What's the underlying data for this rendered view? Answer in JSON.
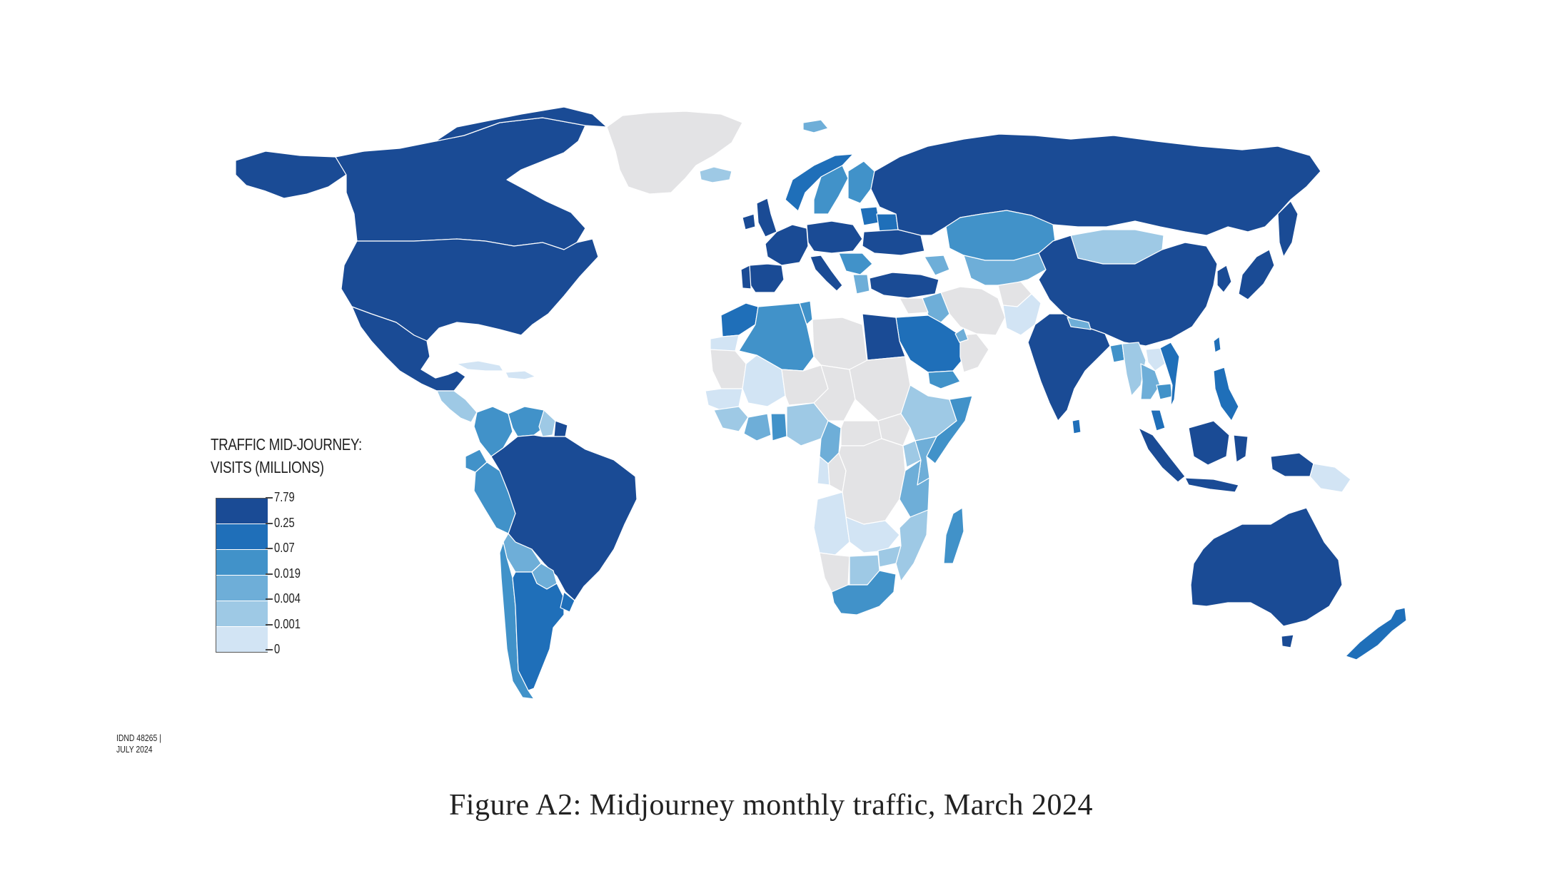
{
  "legend": {
    "title_line1": "TRAFFIC MID-JOURNEY:",
    "title_line2": "VISITS (MILLIONS)",
    "breaks": [
      "7.79",
      "0.25",
      "0.07",
      "0.019",
      "0.004",
      "0.001",
      "0"
    ],
    "colors": [
      "#1a4b95",
      "#1f6fb9",
      "#4192c9",
      "#6eaed8",
      "#9ec9e5",
      "#d2e4f4"
    ],
    "no_data_color": "#e3e3e5"
  },
  "credit": {
    "line1": "IDND 48265 |",
    "line2": "JULY 2024"
  },
  "caption": "Figure A2: Midjourney monthly traffic, March 2024",
  "regions": [
    {
      "name": "Canada",
      "class": 0
    },
    {
      "name": "United States",
      "class": 0
    },
    {
      "name": "Alaska",
      "class": 0
    },
    {
      "name": "Mexico",
      "class": 0
    },
    {
      "name": "Greenland",
      "class": "no-data"
    },
    {
      "name": "Iceland",
      "class": 4
    },
    {
      "name": "Svalbard",
      "class": 3
    },
    {
      "name": "Central America",
      "class": 4
    },
    {
      "name": "Cuba",
      "class": 5
    },
    {
      "name": "Caribbean",
      "class": 5
    },
    {
      "name": "Colombia",
      "class": 2
    },
    {
      "name": "Venezuela",
      "class": 2
    },
    {
      "name": "Guyana",
      "class": 4
    },
    {
      "name": "Suriname",
      "class": 0
    },
    {
      "name": "Ecuador",
      "class": 2
    },
    {
      "name": "Peru",
      "class": 2
    },
    {
      "name": "Brazil",
      "class": 0
    },
    {
      "name": "Bolivia",
      "class": 3
    },
    {
      "name": "Paraguay",
      "class": 3
    },
    {
      "name": "Chile",
      "class": 2
    },
    {
      "name": "Argentina",
      "class": 1
    },
    {
      "name": "Uruguay",
      "class": 1
    },
    {
      "name": "United Kingdom",
      "class": 0
    },
    {
      "name": "Ireland",
      "class": 0
    },
    {
      "name": "Norway",
      "class": 1
    },
    {
      "name": "Sweden",
      "class": 2
    },
    {
      "name": "Finland",
      "class": 2
    },
    {
      "name": "Western Europe",
      "class": 0
    },
    {
      "name": "Spain",
      "class": 0
    },
    {
      "name": "Portugal",
      "class": 0
    },
    {
      "name": "Italy",
      "class": 0
    },
    {
      "name": "Central Europe",
      "class": 0
    },
    {
      "name": "Baltic",
      "class": 1
    },
    {
      "name": "Ukraine",
      "class": 0
    },
    {
      "name": "Belarus",
      "class": 1
    },
    {
      "name": "Balkans",
      "class": 2
    },
    {
      "name": "Greece",
      "class": 3
    },
    {
      "name": "Turkey",
      "class": 0
    },
    {
      "name": "Russia",
      "class": 0
    },
    {
      "name": "Kazakhstan",
      "class": 2
    },
    {
      "name": "Central Asia",
      "class": 3
    },
    {
      "name": "Caucasus",
      "class": 3
    },
    {
      "name": "Iran",
      "class": "no-data"
    },
    {
      "name": "Iraq",
      "class": 3
    },
    {
      "name": "Syria",
      "class": "no-data"
    },
    {
      "name": "Afghanistan",
      "class": "no-data"
    },
    {
      "name": "Pakistan",
      "class": 5
    },
    {
      "name": "Saudi Arabia",
      "class": 1
    },
    {
      "name": "Yemen",
      "class": 2
    },
    {
      "name": "Oman",
      "class": "no-data"
    },
    {
      "name": "Gulf states",
      "class": 3
    },
    {
      "name": "Egypt",
      "class": 0
    },
    {
      "name": "Libya",
      "class": "no-data"
    },
    {
      "name": "Tunisia",
      "class": 2
    },
    {
      "name": "Algeria",
      "class": 2
    },
    {
      "name": "Morocco",
      "class": 1
    },
    {
      "name": "Western Sahara",
      "class": 5
    },
    {
      "name": "Mauritania",
      "class": "no-data"
    },
    {
      "name": "Mali",
      "class": 5
    },
    {
      "name": "Niger",
      "class": "no-data"
    },
    {
      "name": "Chad",
      "class": "no-data"
    },
    {
      "name": "Sudan",
      "class": "no-data"
    },
    {
      "name": "Senegal",
      "class": 5
    },
    {
      "name": "Guinea",
      "class": 4
    },
    {
      "name": "Ivory Coast",
      "class": 3
    },
    {
      "name": "Ghana",
      "class": 2
    },
    {
      "name": "Nigeria",
      "class": 4
    },
    {
      "name": "Cameroon",
      "class": 3
    },
    {
      "name": "Central African Republic",
      "class": "no-data"
    },
    {
      "name": "Ethiopia",
      "class": 4
    },
    {
      "name": "Somalia",
      "class": 2
    },
    {
      "name": "South Sudan",
      "class": "no-data"
    },
    {
      "name": "DR Congo",
      "class": "no-data"
    },
    {
      "name": "Congo",
      "class": "no-data"
    },
    {
      "name": "Gabon",
      "class": 5
    },
    {
      "name": "Uganda",
      "class": 4
    },
    {
      "name": "Kenya",
      "class": 3
    },
    {
      "name": "Tanzania",
      "class": 3
    },
    {
      "name": "Angola",
      "class": 5
    },
    {
      "name": "Zambia",
      "class": 5
    },
    {
      "name": "Mozambique",
      "class": 4
    },
    {
      "name": "Zimbabwe",
      "class": 4
    },
    {
      "name": "Namibia",
      "class": "no-data"
    },
    {
      "name": "Botswana",
      "class": 4
    },
    {
      "name": "South Africa",
      "class": 2
    },
    {
      "name": "Madagascar",
      "class": 2
    },
    {
      "name": "India",
      "class": 0
    },
    {
      "name": "Sri Lanka",
      "class": 1
    },
    {
      "name": "Nepal",
      "class": 3
    },
    {
      "name": "Bangladesh",
      "class": 2
    },
    {
      "name": "Myanmar",
      "class": 4
    },
    {
      "name": "China",
      "class": 0
    },
    {
      "name": "Mongolia",
      "class": 4
    },
    {
      "name": "Korea",
      "class": 0
    },
    {
      "name": "Japan",
      "class": 0
    },
    {
      "name": "Taiwan",
      "class": 1
    },
    {
      "name": "Thailand",
      "class": 3
    },
    {
      "name": "Vietnam",
      "class": 1
    },
    {
      "name": "Laos",
      "class": 5
    },
    {
      "name": "Cambodia",
      "class": 2
    },
    {
      "name": "Malaysia",
      "class": 1
    },
    {
      "name": "Philippines",
      "class": 1
    },
    {
      "name": "Sumatra",
      "class": 0
    },
    {
      "name": "Java",
      "class": 0
    },
    {
      "name": "Borneo",
      "class": 0
    },
    {
      "name": "Sulawesi",
      "class": 0
    },
    {
      "name": "New Guinea (west)",
      "class": 0
    },
    {
      "name": "Papua New Guinea",
      "class": 5
    },
    {
      "name": "Australia",
      "class": 0
    },
    {
      "name": "Tasmania",
      "class": 0
    },
    {
      "name": "New Zealand",
      "class": 1
    }
  ]
}
